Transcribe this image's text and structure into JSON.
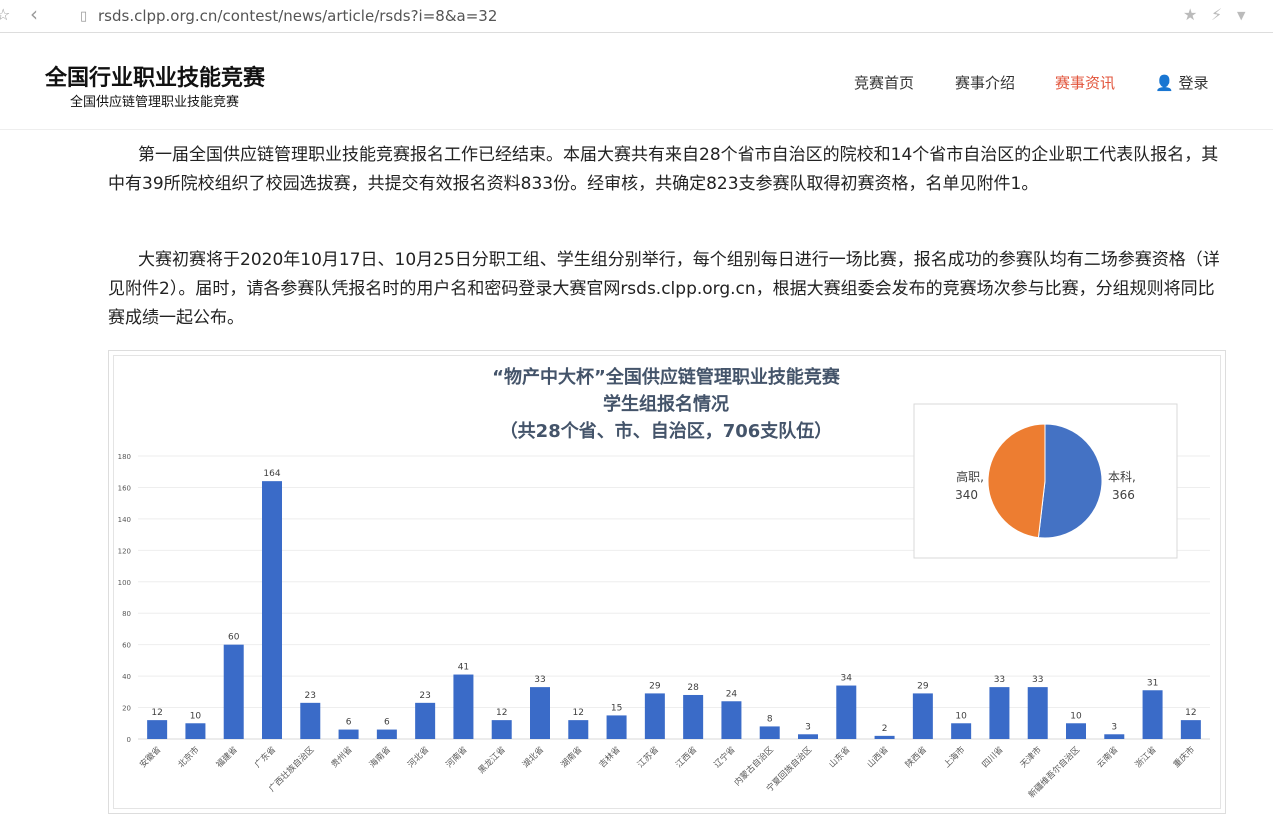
{
  "browser": {
    "url": "rsds.clpp.org.cn/contest/news/article/rsds?i=8&a=32"
  },
  "header": {
    "logo_title": "全国行业职业技能竞赛",
    "logo_subtitle": "全国供应链管理职业技能竞赛",
    "nav": [
      {
        "label": "竞赛首页"
      },
      {
        "label": "赛事介绍"
      },
      {
        "label": "赛事资讯",
        "active": true
      },
      {
        "label": "登录",
        "icon": "user-icon"
      }
    ]
  },
  "article": {
    "paragraphs": [
      "第一届全国供应链管理职业技能竞赛报名工作已经结束。本届大赛共有来自28个省市自治区的院校和14个省市自治区的企业职工代表队报名，其中有39所院校组织了校园选拔赛，共提交有效报名资料833份。经审核，共确定823支参赛队取得初赛资格，名单见附件1。",
      "大赛初赛将于2020年10月17日、10月25日分职工组、学生组分别举行，每个组别每日进行一场比赛，报名成功的参赛队均有二场参赛资格（详见附件2）。届时，请各参赛队凭报名时的用户名和密码登录大赛官网rsds.clpp.org.cn，根据大赛组委会发布的竞赛场次参与比赛，分组规则将同比赛成绩一起公布。"
    ]
  },
  "chart_data": [
    {
      "type": "bar",
      "title": [
        "“物产中大杯”全国供应链管理职业技能竞赛",
        "学生组报名情况",
        "（共28个省、市、自治区，706支队伍）"
      ],
      "categories": [
        "安徽省",
        "北京市",
        "福建省",
        "广东省",
        "广西壮族自治区",
        "贵州省",
        "海南省",
        "河北省",
        "河南省",
        "黑龙江省",
        "湖北省",
        "湖南省",
        "吉林省",
        "江苏省",
        "江西省",
        "辽宁省",
        "内蒙古自治区",
        "宁夏回族自治区",
        "山东省",
        "山西省",
        "陕西省",
        "上海市",
        "四川省",
        "天津市",
        "新疆维吾尔自治区",
        "云南省",
        "浙江省",
        "重庆市"
      ],
      "values": [
        12,
        10,
        60,
        164,
        23,
        6,
        6,
        23,
        41,
        12,
        33,
        12,
        15,
        29,
        28,
        24,
        8,
        3,
        34,
        2,
        29,
        10,
        33,
        33,
        10,
        3,
        31,
        12
      ],
      "ylim": [
        0,
        180
      ],
      "yticks": [
        0,
        20,
        40,
        60,
        80,
        100,
        120,
        140,
        160,
        180
      ],
      "grid": true,
      "color": "#3a6bc8"
    },
    {
      "type": "pie",
      "slices": [
        {
          "label": "本科,",
          "value": 366,
          "color": "#4472c4"
        },
        {
          "label": "高职,",
          "value": 340,
          "color": "#ed7d31"
        }
      ]
    }
  ]
}
